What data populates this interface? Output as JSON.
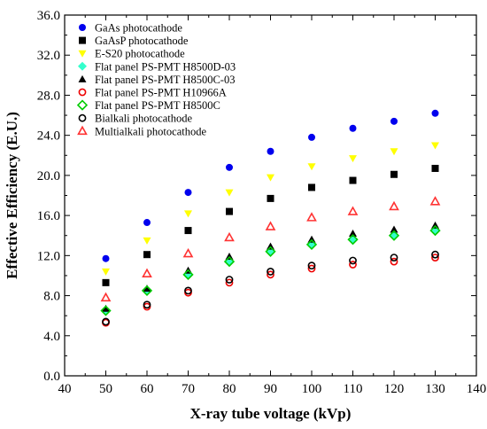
{
  "chart_data": {
    "type": "scatter",
    "title": "",
    "xlabel": "X-ray tube voltage (kVp)",
    "ylabel": "Effective Efficiency (E.U.)",
    "xlim": [
      40,
      140
    ],
    "ylim": [
      0,
      36
    ],
    "xticks": [
      40,
      50,
      60,
      70,
      80,
      90,
      100,
      110,
      120,
      130,
      140
    ],
    "yticks": [
      0.0,
      4.0,
      8.0,
      12.0,
      16.0,
      20.0,
      24.0,
      28.0,
      32.0,
      36.0
    ],
    "x": [
      50,
      60,
      70,
      80,
      90,
      100,
      110,
      120,
      130
    ],
    "grid": false,
    "legend_position": "top-left",
    "series": [
      {
        "name": "GaAs photocathode",
        "marker": "circle-filled",
        "color": "#0000ee",
        "values": [
          11.7,
          15.3,
          18.3,
          20.8,
          22.4,
          23.8,
          24.7,
          25.4,
          26.2
        ]
      },
      {
        "name": "GaAsP photocathode",
        "marker": "square-filled",
        "color": "#000000",
        "values": [
          9.3,
          12.1,
          14.5,
          16.4,
          17.7,
          18.8,
          19.5,
          20.1,
          20.7
        ]
      },
      {
        "name": "E-S20 photocathode",
        "marker": "triangle-down-filled",
        "color": "#ffff00",
        "values": [
          10.4,
          13.5,
          16.2,
          18.3,
          19.8,
          20.9,
          21.7,
          22.4,
          23.0
        ]
      },
      {
        "name": "Flat panel PS-PMT H8500D-03",
        "marker": "diamond-filled",
        "color": "#33ffcc",
        "values": [
          6.5,
          8.5,
          10.1,
          11.4,
          12.4,
          13.1,
          13.6,
          14.0,
          14.5
        ]
      },
      {
        "name": "Flat panel PS-PMT H8500C-03",
        "marker": "triangle-up-filled",
        "color": "#000000",
        "values": [
          6.7,
          8.7,
          10.5,
          11.9,
          12.9,
          13.6,
          14.2,
          14.6,
          15.0
        ]
      },
      {
        "name": "Flat panel PS-PMT H10966A",
        "marker": "circle-open",
        "color": "#ee0000",
        "values": [
          5.3,
          6.9,
          8.3,
          9.3,
          10.1,
          10.7,
          11.1,
          11.4,
          11.8
        ]
      },
      {
        "name": "Flat panel PS-PMT H8500C",
        "marker": "diamond-open",
        "color": "#00cc00",
        "values": [
          6.5,
          8.5,
          10.1,
          11.4,
          12.4,
          13.1,
          13.6,
          14.0,
          14.5
        ]
      },
      {
        "name": "Bialkali photocathode",
        "marker": "circle-open",
        "color": "#000000",
        "values": [
          5.4,
          7.1,
          8.5,
          9.6,
          10.4,
          11.0,
          11.5,
          11.8,
          12.1
        ]
      },
      {
        "name": "Multialkali photocathode",
        "marker": "triangle-up-open",
        "color": "#ff3333",
        "values": [
          7.8,
          10.2,
          12.2,
          13.8,
          14.9,
          15.8,
          16.4,
          16.9,
          17.4
        ]
      }
    ]
  }
}
